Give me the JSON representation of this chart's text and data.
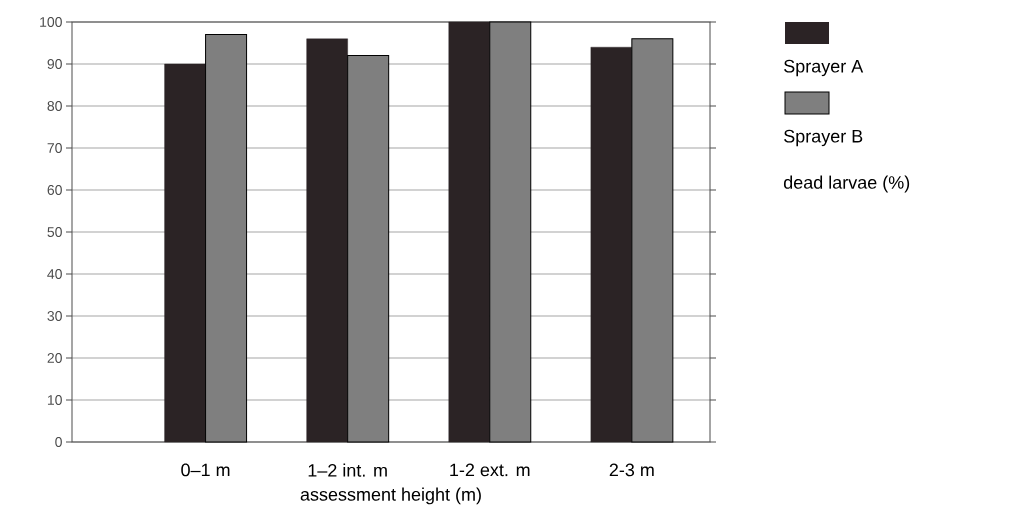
{
  "chart_data": {
    "type": "bar",
    "ylabel": "dead larvae (%)",
    "xlabel": "assessment height (m)",
    "categories": [
      "0–1 m",
      "1–2 int. m",
      "1-2 ext. m",
      "2-3 m"
    ],
    "series": [
      {
        "name": "Sprayer A",
        "color": "#2b2325",
        "values": [
          90,
          96,
          100,
          94
        ]
      },
      {
        "name": "Sprayer B",
        "color": "#7f7f7f",
        "values": [
          97,
          92,
          100,
          96
        ]
      }
    ],
    "ylim": [
      0,
      100
    ],
    "yticks": [
      0,
      10,
      20,
      30,
      40,
      50,
      60,
      70,
      80,
      90,
      100
    ],
    "grid": "y",
    "legend": "right"
  }
}
